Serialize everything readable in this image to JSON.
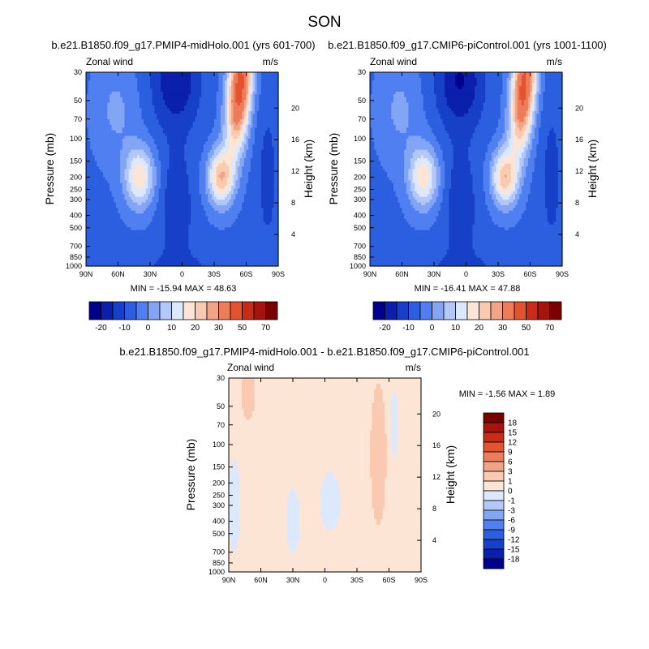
{
  "figure": {
    "suptitle": "SON"
  },
  "chart_data": [
    {
      "type": "heatmap",
      "title": "b.e21.B1850.f09_g17.PMIP4-midHolo.001 (yrs 601-700)",
      "left_label": "Zonal wind",
      "right_label": "m/s",
      "ylabel": "Pressure (mb)",
      "ylabel_right": "Height (km)",
      "stats": "MIN = -15.94   MAX =  48.63",
      "min": -15.94,
      "max": 48.63,
      "xticks": [
        "90N",
        "60N",
        "30N",
        "0",
        "30S",
        "60S",
        "90S"
      ],
      "yticks": [
        "30",
        "50",
        "70",
        "100",
        "150",
        "200",
        "250",
        "300",
        "400",
        "500",
        "700",
        "850",
        "1000"
      ],
      "ytick_values": [
        30,
        50,
        70,
        100,
        150,
        200,
        250,
        300,
        400,
        500,
        700,
        850,
        1000
      ],
      "height_ticks": [
        "4",
        "8",
        "12",
        "16",
        "20"
      ],
      "height_values": [
        4,
        8,
        12,
        16,
        20
      ],
      "ylim": [
        1000,
        30
      ],
      "xlim": [
        90,
        -90
      ],
      "levels": [
        -20,
        -15,
        -10,
        -5,
        0,
        5,
        10,
        15,
        20,
        25,
        30,
        40,
        50,
        60,
        70
      ],
      "colorbar_labels": [
        "-20",
        "-10",
        "0",
        "10",
        "20",
        "30",
        "50",
        "70"
      ],
      "features": [
        {
          "lat": 40,
          "p": 200,
          "value": 22
        },
        {
          "lat": -55,
          "p": 45,
          "value": 48
        },
        {
          "lat": -35,
          "p": 200,
          "value": 35
        },
        {
          "lat": 8,
          "p": 40,
          "value": -15
        }
      ]
    },
    {
      "type": "heatmap",
      "title": "b.e21.B1850.f09_g17.CMIP6-piControl.001 (yrs 1001-1100)",
      "left_label": "Zonal wind",
      "right_label": "m/s",
      "ylabel": "Pressure (mb)",
      "ylabel_right": "Height (km)",
      "stats": "MIN = -16.41   MAX =  47.88",
      "min": -16.41,
      "max": 47.88,
      "xticks": [
        "90N",
        "60N",
        "30N",
        "0",
        "30S",
        "60S",
        "90S"
      ],
      "yticks": [
        "30",
        "50",
        "70",
        "100",
        "150",
        "200",
        "250",
        "300",
        "400",
        "500",
        "700",
        "850",
        "1000"
      ],
      "ytick_values": [
        30,
        50,
        70,
        100,
        150,
        200,
        250,
        300,
        400,
        500,
        700,
        850,
        1000
      ],
      "height_ticks": [
        "4",
        "8",
        "12",
        "16",
        "20"
      ],
      "height_values": [
        4,
        8,
        12,
        16,
        20
      ],
      "ylim": [
        1000,
        30
      ],
      "xlim": [
        90,
        -90
      ],
      "levels": [
        -20,
        -15,
        -10,
        -5,
        0,
        5,
        10,
        15,
        20,
        25,
        30,
        40,
        50,
        60,
        70
      ],
      "colorbar_labels": [
        "-20",
        "-10",
        "0",
        "10",
        "20",
        "30",
        "50",
        "70"
      ],
      "features": [
        {
          "lat": 40,
          "p": 200,
          "value": 22
        },
        {
          "lat": -55,
          "p": 45,
          "value": 47
        },
        {
          "lat": -35,
          "p": 200,
          "value": 34
        },
        {
          "lat": 8,
          "p": 40,
          "value": -16
        }
      ]
    },
    {
      "type": "heatmap",
      "title": "b.e21.B1850.f09_g17.PMIP4-midHolo.001 - b.e21.B1850.f09_g17.CMIP6-piControl.001",
      "left_label": "Zonal wind",
      "right_label": "m/s",
      "ylabel": "Pressure (mb)",
      "ylabel_right": "Height (km)",
      "stats": "MIN =  -1.56   MAX =   1.89",
      "min": -1.56,
      "max": 1.89,
      "xticks": [
        "90N",
        "60N",
        "30N",
        "0",
        "30S",
        "60S",
        "90S"
      ],
      "yticks": [
        "30",
        "50",
        "70",
        "100",
        "150",
        "200",
        "250",
        "300",
        "400",
        "500",
        "700",
        "850",
        "1000"
      ],
      "ytick_values": [
        30,
        50,
        70,
        100,
        150,
        200,
        250,
        300,
        400,
        500,
        700,
        850,
        1000
      ],
      "height_ticks": [
        "4",
        "8",
        "12",
        "16",
        "20"
      ],
      "height_values": [
        4,
        8,
        12,
        16,
        20
      ],
      "ylim": [
        1000,
        30
      ],
      "xlim": [
        90,
        -90
      ],
      "levels": [
        -18,
        -15,
        -12,
        -9,
        -6,
        -3,
        -1,
        0,
        1,
        3,
        6,
        9,
        12,
        15,
        18
      ],
      "colorbar_labels": [
        "18",
        "15",
        "12",
        "9",
        "6",
        "3",
        "1",
        "0",
        "-1",
        "-3",
        "-6",
        "-9",
        "-12",
        "-15",
        "-18"
      ],
      "features": [
        {
          "lat": 70,
          "p": 40,
          "value": 1.2
        },
        {
          "lat": -50,
          "p": 150,
          "value": 1.9
        },
        {
          "lat": -5,
          "p": 250,
          "value": -1.5
        },
        {
          "lat": -65,
          "p": 60,
          "value": -1.0
        }
      ]
    }
  ],
  "colors": {
    "full": [
      "#00008f",
      "#0a1fab",
      "#1640c8",
      "#2c5ee0",
      "#4f7ff0",
      "#82a6f5",
      "#b3c8f8",
      "#dce8fb",
      "#fde5d6",
      "#f9c9b0",
      "#f2a487",
      "#ed7c5a",
      "#e4522f",
      "#c82c19",
      "#a5150d",
      "#7a0000"
    ],
    "diff": [
      "#00008f",
      "#0a1fab",
      "#1640c8",
      "#2c5ee0",
      "#4f7ff0",
      "#82a6f5",
      "#b3c8f8",
      "#dce8fb",
      "#fde5d6",
      "#f9c9b0",
      "#f2a487",
      "#ed7c5a",
      "#e4522f",
      "#c82c19",
      "#a5150d",
      "#7a0000"
    ]
  }
}
